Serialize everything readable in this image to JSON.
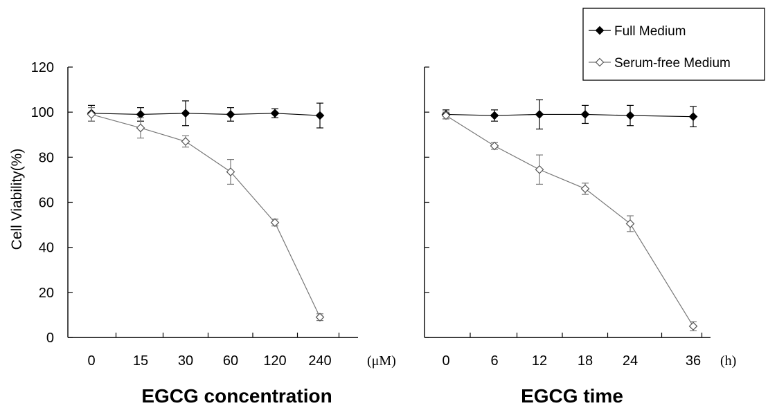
{
  "chart_data": [
    {
      "type": "line",
      "xlabel": "EGCG concentration",
      "x_unit": "(μM)",
      "ylabel": "Cell Viability(%)",
      "ylim": [
        0,
        120
      ],
      "yticks": [
        "0",
        "20",
        "40",
        "60",
        "80",
        "100",
        "120"
      ],
      "categories": [
        "0",
        "15",
        "30",
        "60",
        "120",
        "240"
      ],
      "series": [
        {
          "name": "Full Medium",
          "marker": "filled-diamond",
          "color": "#000000",
          "values": [
            99.5,
            99.0,
            99.5,
            99.0,
            99.5,
            98.5
          ],
          "errors": [
            3.5,
            3.0,
            5.5,
            3.0,
            2.0,
            5.5
          ]
        },
        {
          "name": "Serum-free Medium",
          "marker": "open-diamond",
          "color": "#777777",
          "values": [
            99.0,
            93.0,
            87.0,
            73.5,
            51.0,
            9.0
          ],
          "errors": [
            3.0,
            4.5,
            2.5,
            5.5,
            1.5,
            1.5
          ]
        }
      ]
    },
    {
      "type": "line",
      "xlabel": "EGCG time",
      "x_unit": "(h)",
      "ylim": [
        0,
        120
      ],
      "categories": [
        "0",
        "6",
        "12",
        "18",
        "24",
        "36"
      ],
      "series": [
        {
          "name": "Full Medium",
          "marker": "filled-diamond",
          "color": "#000000",
          "values": [
            99.0,
            98.5,
            99.0,
            99.0,
            98.5,
            98.0
          ],
          "errors": [
            2.0,
            2.5,
            6.5,
            4.0,
            4.5,
            4.5
          ]
        },
        {
          "name": "Serum-free Medium",
          "marker": "open-diamond",
          "color": "#777777",
          "values": [
            98.5,
            85.0,
            74.5,
            66.0,
            50.5,
            5.0
          ],
          "errors": [
            1.5,
            1.5,
            6.5,
            2.5,
            3.5,
            2.0
          ]
        }
      ]
    }
  ],
  "legend": {
    "position": "top-right",
    "items": [
      "Full Medium",
      "Serum-free Medium"
    ]
  }
}
